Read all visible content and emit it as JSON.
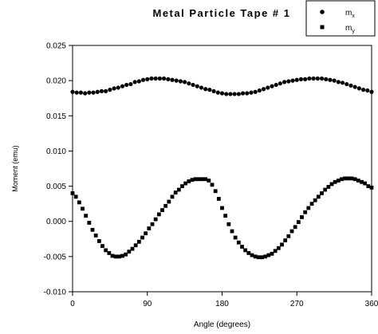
{
  "chart_data": {
    "type": "scatter",
    "title": "Metal Particle Tape # 1",
    "xlabel": "Angle (degrees)",
    "ylabel": "Moment (emu)",
    "xlim": [
      0,
      360
    ],
    "ylim": [
      -0.01,
      0.025
    ],
    "xticks": [
      0,
      90,
      180,
      270,
      360
    ],
    "xtick_labels": [
      "0",
      "90",
      "180",
      "270",
      "360"
    ],
    "yticks": [
      -0.01,
      -0.005,
      0.0,
      0.005,
      0.01,
      0.015,
      0.02,
      0.025
    ],
    "ytick_labels": [
      "-0.010",
      "-0.005",
      "0.000",
      "0.005",
      "0.010",
      "0.015",
      "0.020",
      "0.025"
    ],
    "grid": false,
    "legend": {
      "placement": "top-right",
      "entries": [
        {
          "main": "m",
          "sub": "x",
          "marker": "circle"
        },
        {
          "main": "m",
          "sub": "y",
          "marker": "square"
        }
      ]
    },
    "series": [
      {
        "legend_index": 0,
        "marker": "circle",
        "x": [
          0,
          5,
          10,
          15,
          20,
          25,
          30,
          35,
          40,
          45,
          50,
          55,
          60,
          65,
          70,
          75,
          80,
          85,
          90,
          95,
          100,
          105,
          110,
          115,
          120,
          125,
          130,
          135,
          140,
          145,
          150,
          155,
          160,
          165,
          170,
          175,
          180,
          185,
          190,
          195,
          200,
          205,
          210,
          215,
          220,
          225,
          230,
          235,
          240,
          245,
          250,
          255,
          260,
          265,
          270,
          275,
          280,
          285,
          290,
          295,
          300,
          305,
          310,
          315,
          320,
          325,
          330,
          335,
          340,
          345,
          350,
          355,
          360
        ],
        "y": [
          0.0184,
          0.0183,
          0.0183,
          0.0182,
          0.0183,
          0.0183,
          0.0184,
          0.0185,
          0.0185,
          0.0187,
          0.0189,
          0.019,
          0.0192,
          0.0194,
          0.0195,
          0.0198,
          0.0199,
          0.0201,
          0.0202,
          0.0203,
          0.0203,
          0.0203,
          0.0203,
          0.0202,
          0.0201,
          0.02,
          0.0199,
          0.0198,
          0.0196,
          0.0194,
          0.0192,
          0.019,
          0.0188,
          0.0187,
          0.0185,
          0.0183,
          0.0182,
          0.0181,
          0.0181,
          0.0181,
          0.0181,
          0.0182,
          0.0182,
          0.0183,
          0.0184,
          0.0186,
          0.0188,
          0.019,
          0.0192,
          0.0194,
          0.0196,
          0.0198,
          0.0199,
          0.02,
          0.0201,
          0.0202,
          0.0202,
          0.0203,
          0.0203,
          0.0203,
          0.0203,
          0.0202,
          0.0201,
          0.02,
          0.0198,
          0.0197,
          0.0195,
          0.0193,
          0.0191,
          0.0189,
          0.0187,
          0.0186,
          0.0184
        ]
      },
      {
        "legend_index": 1,
        "marker": "square",
        "x": [
          0,
          4,
          8,
          12,
          16,
          20,
          24,
          28,
          32,
          36,
          40,
          44,
          48,
          52,
          56,
          60,
          64,
          68,
          72,
          76,
          80,
          84,
          88,
          92,
          96,
          100,
          104,
          108,
          112,
          116,
          120,
          124,
          128,
          132,
          136,
          140,
          144,
          148,
          152,
          156,
          160,
          164,
          168,
          172,
          176,
          180,
          184,
          188,
          192,
          196,
          200,
          204,
          208,
          212,
          216,
          220,
          224,
          228,
          232,
          236,
          240,
          244,
          248,
          252,
          256,
          260,
          264,
          268,
          272,
          276,
          280,
          284,
          288,
          292,
          296,
          300,
          304,
          308,
          312,
          316,
          320,
          324,
          328,
          332,
          336,
          340,
          344,
          348,
          352,
          356,
          360
        ],
        "y": [
          0.004,
          0.0035,
          0.0027,
          0.0018,
          0.0008,
          -0.0002,
          -0.0012,
          -0.002,
          -0.0028,
          -0.0035,
          -0.0041,
          -0.0045,
          -0.0049,
          -0.005,
          -0.005,
          -0.0049,
          -0.0047,
          -0.0043,
          -0.0039,
          -0.0034,
          -0.0029,
          -0.0023,
          -0.0017,
          -0.001,
          -0.0004,
          0.0003,
          0.001,
          0.0016,
          0.0022,
          0.0028,
          0.0035,
          0.0041,
          0.0045,
          0.005,
          0.0054,
          0.0057,
          0.0059,
          0.006,
          0.006,
          0.006,
          0.006,
          0.0058,
          0.0052,
          0.0043,
          0.0032,
          0.0019,
          0.0008,
          -0.0004,
          -0.0014,
          -0.0023,
          -0.003,
          -0.0036,
          -0.0041,
          -0.0045,
          -0.0048,
          -0.005,
          -0.0051,
          -0.0051,
          -0.005,
          -0.0048,
          -0.0046,
          -0.0042,
          -0.0038,
          -0.0033,
          -0.0027,
          -0.0021,
          -0.0014,
          -0.0008,
          -0.0001,
          0.0006,
          0.0013,
          0.0019,
          0.0025,
          0.003,
          0.0035,
          0.004,
          0.0045,
          0.0049,
          0.0053,
          0.0056,
          0.0058,
          0.006,
          0.0061,
          0.0061,
          0.0061,
          0.006,
          0.0058,
          0.0056,
          0.0054,
          0.005,
          0.0048
        ]
      }
    ]
  }
}
